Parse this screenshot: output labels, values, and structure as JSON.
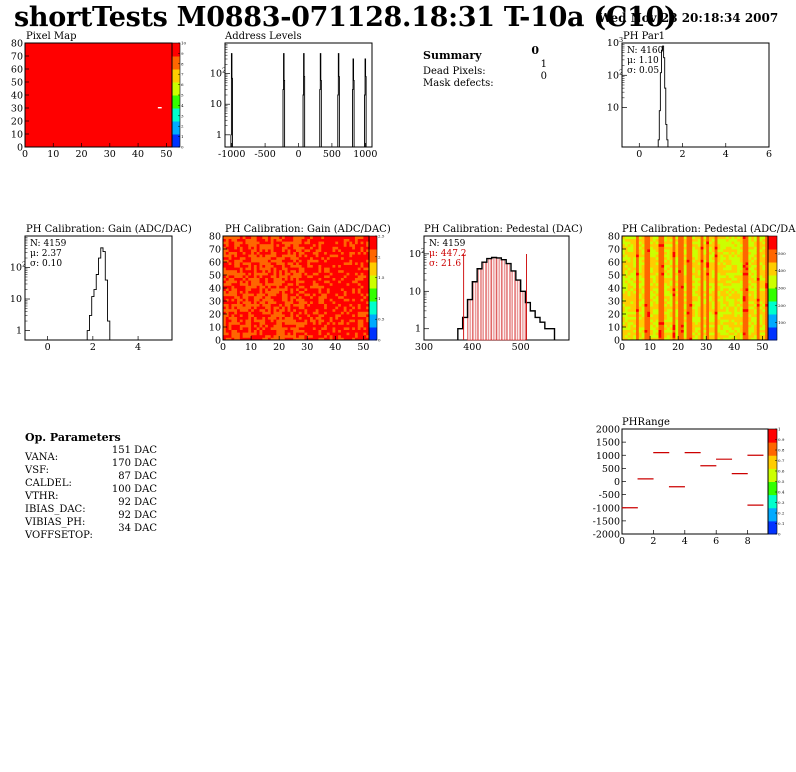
{
  "header": {
    "title": "shortTests M0883-071128.18:31 T-10a (C10)",
    "date": "Wed Nov 28 20:18:34 2007"
  },
  "summary": {
    "heading": "Summary",
    "heading_value": "0",
    "rows": [
      {
        "label": "Dead Pixels:",
        "value": "1"
      },
      {
        "label": "Mask defects:",
        "value": "0"
      }
    ]
  },
  "op_parameters": {
    "heading": "Op. Parameters",
    "rows": [
      {
        "label": "VANA:",
        "value": "151 DAC"
      },
      {
        "label": "VSF:",
        "value": "170 DAC"
      },
      {
        "label": "CALDEL:",
        "value": "87 DAC"
      },
      {
        "label": "VTHR:",
        "value": "100 DAC"
      },
      {
        "label": "IBIAS_DAC:",
        "value": "92 DAC"
      },
      {
        "label": "VIBIAS_PH:",
        "value": "92 DAC"
      },
      {
        "label": "VOFFSETOP:",
        "value": "34 DAC"
      }
    ]
  },
  "chart_data": [
    {
      "id": "pixel-map",
      "type": "heatmap",
      "title": "Pixel Map",
      "xlim": [
        0,
        52
      ],
      "ylim": [
        0,
        80
      ],
      "xticks": [
        0,
        10,
        20,
        30,
        40,
        50
      ],
      "yticks": [
        0,
        10,
        20,
        30,
        40,
        50,
        60,
        70,
        80
      ],
      "fill_color": "#ff0000",
      "dead_pixels": [
        {
          "col": 47,
          "row": 30
        }
      ],
      "zscale": {
        "min": 0,
        "max": 10,
        "ticks": [
          0,
          1,
          2,
          3,
          4,
          5,
          6,
          7,
          8,
          9,
          10
        ]
      }
    },
    {
      "id": "address-levels",
      "type": "bar",
      "title": "Address Levels",
      "xlim": [
        -1100,
        1100
      ],
      "ylim_log": [
        0.4,
        1000
      ],
      "xticks": [
        -1000,
        -500,
        0,
        500,
        1000
      ],
      "yticks": [
        {
          "v": 1,
          "label": "1"
        },
        {
          "v": 10,
          "label": "10"
        },
        {
          "v": 100,
          "label": "10^2"
        }
      ],
      "peaks": [
        {
          "x": -1000,
          "h": [
            1,
            70,
            450
          ]
        },
        {
          "x": -220,
          "h": [
            30,
            60,
            450
          ]
        },
        {
          "x": 80,
          "h": [
            20,
            80,
            450
          ]
        },
        {
          "x": 330,
          "h": [
            30,
            60,
            450
          ]
        },
        {
          "x": 600,
          "h": [
            20,
            80,
            450
          ]
        },
        {
          "x": 820,
          "h": [
            30,
            60,
            300
          ]
        },
        {
          "x": 1000,
          "h": [
            20,
            80,
            300
          ]
        }
      ]
    },
    {
      "id": "ph-par1",
      "type": "bar",
      "title": "PH Par1",
      "xlim": [
        -0.8,
        6
      ],
      "ylim_log": [
        0.6,
        1000
      ],
      "xticks": [
        0,
        2,
        4,
        6
      ],
      "yticks": [
        {
          "v": 10,
          "label": "10"
        },
        {
          "v": 100,
          "label": "10^2"
        },
        {
          "v": 1000,
          "label": "10^3"
        }
      ],
      "stats": {
        "entries": "N: 4160",
        "mean": "μ: 1.10",
        "sigma": "σ: 0.05"
      },
      "bins": [
        [
          0.9,
          1
        ],
        [
          0.95,
          8
        ],
        [
          1.0,
          120
        ],
        [
          1.05,
          600
        ],
        [
          1.1,
          800
        ],
        [
          1.15,
          350
        ],
        [
          1.2,
          40
        ],
        [
          1.25,
          3
        ],
        [
          1.3,
          1
        ]
      ]
    },
    {
      "id": "ph-gain-1d",
      "type": "bar",
      "title": "PH Calibration: Gain (ADC/DAC)",
      "xlim": [
        -1,
        5.5
      ],
      "ylim_log": [
        0.5,
        1000
      ],
      "xticks": [
        0,
        2,
        4
      ],
      "yticks": [
        {
          "v": 1,
          "label": "1"
        },
        {
          "v": 10,
          "label": "10"
        },
        {
          "v": 100,
          "label": "10^2"
        }
      ],
      "stats": {
        "entries": "N: 4159",
        "mean": "μ: 2.37",
        "sigma": "σ: 0.10"
      },
      "bins": [
        [
          1.8,
          1
        ],
        [
          1.9,
          3
        ],
        [
          2.0,
          12
        ],
        [
          2.1,
          20
        ],
        [
          2.2,
          60
        ],
        [
          2.3,
          200
        ],
        [
          2.4,
          420
        ],
        [
          2.5,
          320
        ],
        [
          2.6,
          40
        ],
        [
          2.7,
          2
        ]
      ]
    },
    {
      "id": "ph-gain-map",
      "type": "heatmap",
      "title": "PH Calibration: Gain (ADC/DAC)",
      "xlim": [
        0,
        52
      ],
      "ylim": [
        0,
        80
      ],
      "xticks": [
        0,
        10,
        20,
        30,
        40,
        50
      ],
      "yticks": [
        0,
        10,
        20,
        30,
        40,
        50,
        60,
        70,
        80
      ],
      "zscale": {
        "min": 0,
        "max": 2.5,
        "ticks": [
          0,
          0.5,
          1,
          1.5,
          2,
          2.5
        ]
      }
    },
    {
      "id": "ph-pedestal-1d",
      "type": "bar",
      "title": "PH Calibration: Pedestal (DAC)",
      "xlim": [
        300,
        600
      ],
      "ylim_log": [
        0.5,
        300
      ],
      "xticks": [
        300,
        400,
        500
      ],
      "yticks": [
        {
          "v": 1,
          "label": "1"
        },
        {
          "v": 10,
          "label": "10"
        },
        {
          "v": 100,
          "label": "10^2"
        }
      ],
      "stats": {
        "entries": "N: 4159",
        "mean": "μ: 447.2",
        "sigma": "σ: 21.6"
      },
      "cut_lines": [
        382,
        512
      ],
      "bins": [
        [
          375,
          1
        ],
        [
          385,
          2
        ],
        [
          395,
          6
        ],
        [
          405,
          18
        ],
        [
          415,
          40
        ],
        [
          425,
          60
        ],
        [
          435,
          75
        ],
        [
          445,
          80
        ],
        [
          455,
          78
        ],
        [
          465,
          70
        ],
        [
          475,
          55
        ],
        [
          485,
          35
        ],
        [
          495,
          20
        ],
        [
          505,
          10
        ],
        [
          515,
          5
        ],
        [
          525,
          3
        ],
        [
          535,
          2
        ],
        [
          545,
          1.5
        ],
        [
          555,
          1
        ],
        [
          565,
          1
        ]
      ]
    },
    {
      "id": "ph-pedestal-map",
      "type": "heatmap",
      "title": "PH Calibration: Pedestal (ADC/DAC)",
      "xlim": [
        0,
        52
      ],
      "ylim": [
        0,
        80
      ],
      "xticks": [
        0,
        10,
        20,
        30,
        40,
        50
      ],
      "yticks": [
        0,
        10,
        20,
        30,
        40,
        50,
        60,
        70,
        80
      ],
      "zscale": {
        "min": 0,
        "max": 600,
        "ticks": [
          100,
          200,
          300,
          400,
          500
        ]
      }
    },
    {
      "id": "ph-range",
      "type": "scatter",
      "title": "PHRange",
      "xlim": [
        0,
        9.3
      ],
      "ylim": [
        -2000,
        2000
      ],
      "xticks": [
        0,
        2,
        4,
        6,
        8
      ],
      "yticks": [
        2000,
        1500,
        1000,
        500,
        0,
        -500,
        -1000,
        -1500,
        -2000
      ],
      "points": [
        [
          0.5,
          -1000
        ],
        [
          1.5,
          100
        ],
        [
          2.5,
          1100
        ],
        [
          3.5,
          -200
        ],
        [
          4.5,
          1100
        ],
        [
          5.5,
          600
        ],
        [
          6.5,
          850
        ],
        [
          7.5,
          300
        ],
        [
          8.5,
          -900
        ],
        [
          8.5,
          1000
        ]
      ],
      "marker_color": "#cc0000",
      "zscale": {
        "min": 0,
        "max": 1,
        "ticks": [
          0,
          0.1,
          0.2,
          0.3,
          0.4,
          0.5,
          0.6,
          0.7,
          0.8,
          0.9,
          1
        ]
      }
    }
  ]
}
